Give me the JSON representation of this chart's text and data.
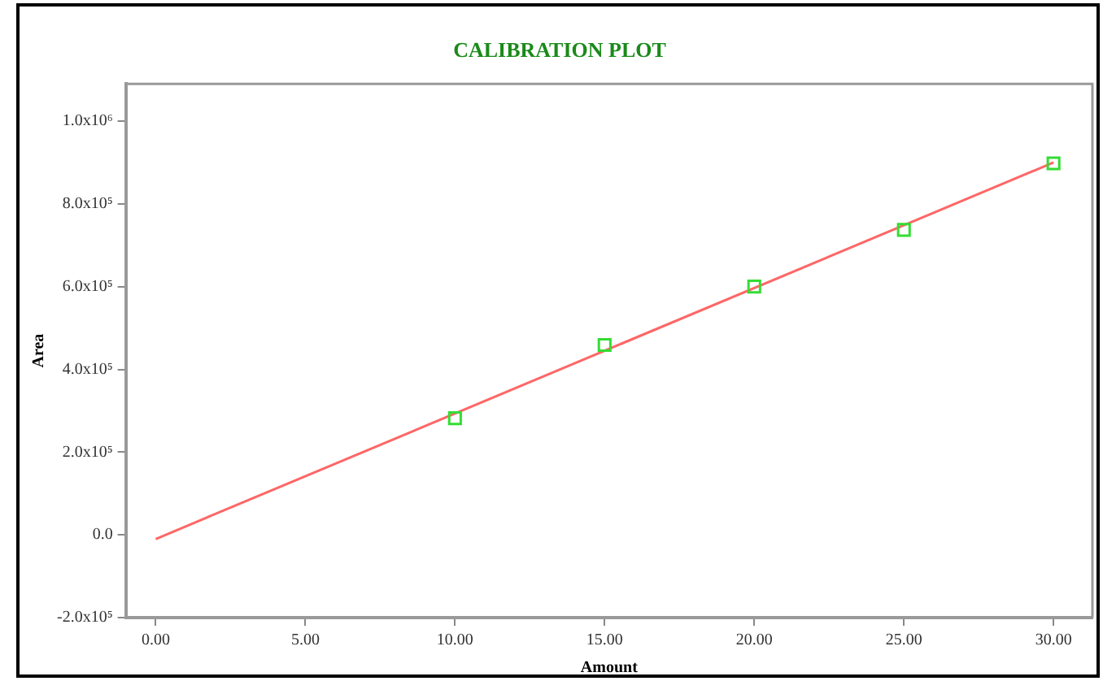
{
  "chart_data": {
    "type": "scatter",
    "title": "CALIBRATION PLOT",
    "xlabel": "Amount",
    "ylabel": "Area",
    "xlim": [
      -1,
      31.3
    ],
    "ylim": [
      -200000,
      1090000
    ],
    "xticks": [
      {
        "value": 0,
        "label": "0.00"
      },
      {
        "value": 5,
        "label": "5.00"
      },
      {
        "value": 10,
        "label": "10.00"
      },
      {
        "value": 15,
        "label": "15.00"
      },
      {
        "value": 20,
        "label": "20.00"
      },
      {
        "value": 25,
        "label": "25.00"
      },
      {
        "value": 30,
        "label": "30.00"
      }
    ],
    "yticks": [
      {
        "value": -200000,
        "label": "-2.0x10⁵"
      },
      {
        "value": 0,
        "label": "0.0"
      },
      {
        "value": 200000,
        "label": "2.0x10⁵"
      },
      {
        "value": 400000,
        "label": "4.0x10⁵"
      },
      {
        "value": 600000,
        "label": "6.0x10⁵"
      },
      {
        "value": 800000,
        "label": "8.0x10⁵"
      },
      {
        "value": 1000000,
        "label": "1.0x10⁶"
      }
    ],
    "grid": false,
    "legend": false,
    "series": [
      {
        "color": "#33dd33",
        "marker": "square",
        "x": [
          10,
          15,
          20,
          25,
          30
        ],
        "values": [
          282000,
          459000,
          600000,
          737000,
          898000
        ]
      },
      {
        "type": "line",
        "color": "#ff6666",
        "marker": "none",
        "line_style": "solid",
        "x": [
          0,
          30
        ],
        "values": [
          -10000,
          900000
        ]
      }
    ]
  }
}
